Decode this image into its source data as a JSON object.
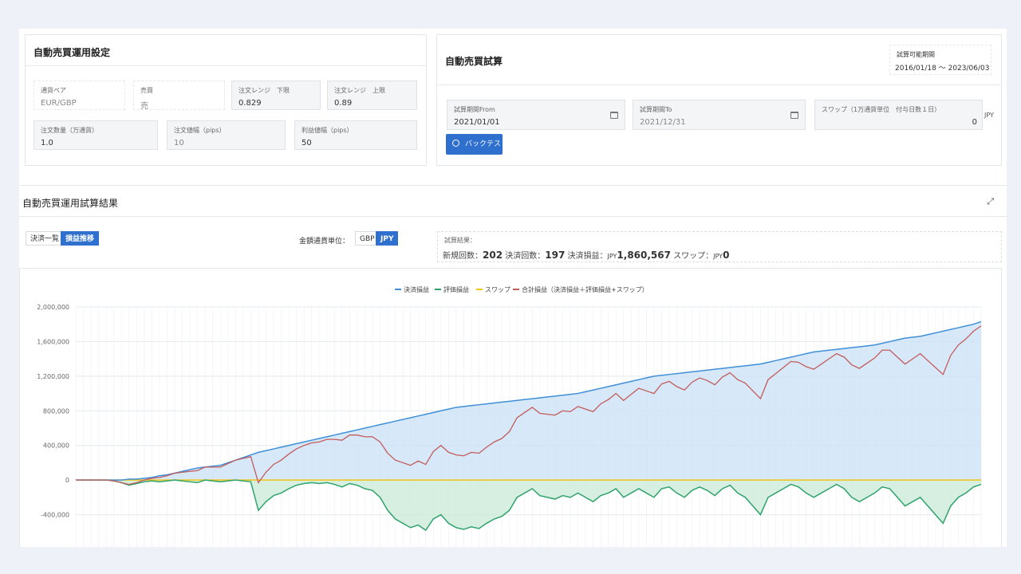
{
  "settings": {
    "title": "自動売買運用設定",
    "currency_pair": {
      "label": "通貨ペア",
      "value": "EUR/GBP"
    },
    "side": {
      "label": "売買",
      "value": "売"
    },
    "range_lower": {
      "label": "注文レンジ　下限",
      "value": "0.829"
    },
    "range_upper": {
      "label": "注文レンジ　上限",
      "value": "0.89"
    },
    "order_qty": {
      "label": "注文数量（万通貨）",
      "value": "1.0"
    },
    "order_width": {
      "label": "注文値幅（pips）",
      "value": "10"
    },
    "profit_width": {
      "label": "利益値幅（pips）",
      "value": "50"
    }
  },
  "simulation": {
    "title": "自動売買試算",
    "available_label": "試算可能期間",
    "available_value": "2016/01/18 ～ 2023/06/03",
    "from": {
      "label": "試算期間From",
      "value": "2021/01/01"
    },
    "to": {
      "label": "試算期間To",
      "value": "2021/12/31"
    },
    "swap": {
      "label": "スワップ（1万通貨単位　付与日数１日）",
      "value": "0",
      "unit": "JPY"
    },
    "backtest_label": "バックテスト"
  },
  "results": {
    "title": "自動売買運用試算結果",
    "expand_icon": "expand-icon",
    "tab_list": "決済一覧",
    "tab_pl": "損益推移",
    "unit_label": "金額通貨単位：",
    "unit_gbp": "GBP",
    "unit_jpy": "JPY",
    "summary_label": "試算結果：",
    "new_count_label": "新規回数：",
    "new_count": "202",
    "settle_count_label": "決済回数：",
    "settle_count": "197",
    "settle_pl_label": "決済損益：",
    "settle_pl_currency": "JPY",
    "settle_pl": "1,860,567",
    "swap_label": "スワップ：",
    "swap_currency": "JPY",
    "swap_value": "0"
  },
  "colors": {
    "accent": "#2f6fce",
    "realized": "#3f8fd8",
    "unrealized": "#2fa36b",
    "swap": "#f2c511",
    "total": "#c35b5b"
  },
  "chart_data": {
    "type": "area",
    "x_count": 120,
    "ylim": [
      -800000,
      2000000
    ],
    "yticks": [
      "2,000,000",
      "1,600,000",
      "1,200,000",
      "800,000",
      "400,000",
      "0",
      "-400,000",
      "-800,000"
    ],
    "ytick_values": [
      2000000,
      1600000,
      1200000,
      800000,
      400000,
      0,
      -400000,
      -800000
    ],
    "legend": [
      "決済損益",
      "評価損益",
      "スワップ",
      "合計損益（決済損益＋評価損益+スワップ）"
    ],
    "series": [
      {
        "name": "決済損益",
        "values": [
          0,
          0,
          0,
          0,
          0,
          0,
          0,
          10000,
          10000,
          20000,
          30000,
          50000,
          60000,
          80000,
          100000,
          120000,
          140000,
          150000,
          160000,
          170000,
          200000,
          230000,
          260000,
          290000,
          320000,
          340000,
          360000,
          380000,
          400000,
          420000,
          440000,
          460000,
          480000,
          500000,
          520000,
          540000,
          560000,
          580000,
          600000,
          620000,
          640000,
          660000,
          680000,
          700000,
          720000,
          740000,
          760000,
          780000,
          800000,
          820000,
          840000,
          850000,
          860000,
          870000,
          880000,
          890000,
          900000,
          910000,
          920000,
          930000,
          940000,
          950000,
          960000,
          970000,
          980000,
          990000,
          1000000,
          1020000,
          1040000,
          1060000,
          1080000,
          1100000,
          1120000,
          1140000,
          1160000,
          1180000,
          1200000,
          1210000,
          1220000,
          1230000,
          1240000,
          1250000,
          1260000,
          1270000,
          1280000,
          1290000,
          1300000,
          1310000,
          1320000,
          1330000,
          1340000,
          1360000,
          1380000,
          1400000,
          1420000,
          1440000,
          1460000,
          1480000,
          1490000,
          1500000,
          1510000,
          1520000,
          1530000,
          1540000,
          1550000,
          1560000,
          1580000,
          1600000,
          1620000,
          1640000,
          1650000,
          1660000,
          1680000,
          1700000,
          1720000,
          1740000,
          1760000,
          1780000,
          1800000,
          1830000
        ]
      },
      {
        "name": "評価損益",
        "values": [
          0,
          0,
          0,
          0,
          0,
          -10000,
          -30000,
          -60000,
          -40000,
          -20000,
          -10000,
          -20000,
          -10000,
          0,
          -10000,
          -20000,
          -30000,
          0,
          -10000,
          -20000,
          -10000,
          0,
          -10000,
          -20000,
          -350000,
          -250000,
          -180000,
          -150000,
          -100000,
          -60000,
          -40000,
          -30000,
          -40000,
          -30000,
          -50000,
          -80000,
          -40000,
          -60000,
          -100000,
          -120000,
          -200000,
          -350000,
          -450000,
          -500000,
          -550000,
          -520000,
          -580000,
          -450000,
          -400000,
          -500000,
          -550000,
          -570000,
          -540000,
          -560000,
          -500000,
          -450000,
          -420000,
          -350000,
          -200000,
          -150000,
          -100000,
          -180000,
          -200000,
          -220000,
          -180000,
          -200000,
          -150000,
          -200000,
          -250000,
          -180000,
          -150000,
          -100000,
          -200000,
          -150000,
          -100000,
          -150000,
          -200000,
          -100000,
          -80000,
          -150000,
          -200000,
          -120000,
          -80000,
          -120000,
          -180000,
          -100000,
          -60000,
          -150000,
          -200000,
          -300000,
          -400000,
          -200000,
          -150000,
          -100000,
          -50000,
          -80000,
          -150000,
          -200000,
          -150000,
          -100000,
          -50000,
          -100000,
          -200000,
          -250000,
          -200000,
          -150000,
          -80000,
          -100000,
          -200000,
          -300000,
          -250000,
          -200000,
          -300000,
          -400000,
          -500000,
          -300000,
          -200000,
          -150000,
          -80000,
          -50000
        ]
      },
      {
        "name": "スワップ",
        "values": [
          0,
          0,
          0,
          0,
          0,
          0,
          0,
          0,
          0,
          0,
          0,
          0,
          0,
          0,
          0,
          0,
          0,
          0,
          0,
          0,
          0,
          0,
          0,
          0,
          0,
          0,
          0,
          0,
          0,
          0,
          0,
          0,
          0,
          0,
          0,
          0,
          0,
          0,
          0,
          0,
          0,
          0,
          0,
          0,
          0,
          0,
          0,
          0,
          0,
          0,
          0,
          0,
          0,
          0,
          0,
          0,
          0,
          0,
          0,
          0,
          0,
          0,
          0,
          0,
          0,
          0,
          0,
          0,
          0,
          0,
          0,
          0,
          0,
          0,
          0,
          0,
          0,
          0,
          0,
          0,
          0,
          0,
          0,
          0,
          0,
          0,
          0,
          0,
          0,
          0,
          0,
          0,
          0,
          0,
          0,
          0,
          0,
          0,
          0,
          0,
          0,
          0,
          0,
          0,
          0,
          0,
          0,
          0,
          0,
          0,
          0,
          0,
          0,
          0,
          0,
          0,
          0,
          0,
          0,
          0
        ]
      }
    ]
  }
}
